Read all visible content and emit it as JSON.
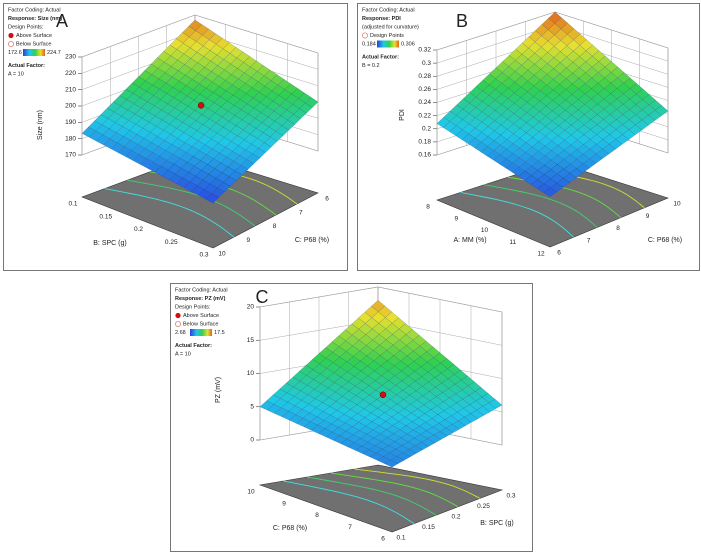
{
  "panels": [
    {
      "letter": "A",
      "legend": {
        "coding": "Factor Coding: Actual",
        "response": "Response: Size (nm)",
        "design_points": "Design Points:",
        "above_surface": "Above Surface",
        "below_surface": "Below Surface",
        "range_min": 172.6,
        "range_max": 224.7,
        "actual_factor": "Actual Factor:",
        "factor_value": "A = 10"
      },
      "z_label": "Size (nm)",
      "z_ticks": [
        170,
        180,
        190,
        200,
        210,
        220,
        230
      ],
      "left_axis_label": "B: SPC (g)",
      "left_ticks": [
        0.1,
        0.15,
        0.2,
        0.25,
        0.3
      ],
      "right_axis_label": "C: P68 (%)",
      "right_ticks": [
        10,
        9,
        8,
        7,
        6
      ]
    },
    {
      "letter": "B",
      "legend": {
        "coding": "Factor Coding: Actual",
        "response": "Response: PDI",
        "note": "(adjusted for curvature)",
        "design_points": "Design Points",
        "range_min": 0.184,
        "range_max": 0.306,
        "actual_factor": "Actual Factor:",
        "factor_value": "B = 0.2"
      },
      "z_label": "PDI",
      "z_ticks": [
        0.16,
        0.18,
        0.2,
        0.22,
        0.24,
        0.26,
        0.28,
        0.3,
        0.32
      ],
      "left_axis_label": "A: MM (%)",
      "left_ticks": [
        8,
        9,
        10,
        11,
        12
      ],
      "right_axis_label": "C: P68 (%)",
      "right_ticks": [
        6,
        7,
        8,
        9,
        10
      ]
    },
    {
      "letter": "C",
      "legend": {
        "coding": "Factor Coding: Actual",
        "response": "Response: PZ (mV)",
        "design_points": "Design Points:",
        "above_surface": "Above Surface",
        "below_surface": "Below Surface",
        "range_min": 2.68,
        "range_max": 17.5,
        "actual_factor": "Actual Factor:",
        "factor_value": "A = 10"
      },
      "z_label": "PZ (mV)",
      "z_ticks": [
        0,
        5,
        10,
        15,
        20
      ],
      "left_axis_label": "C: P68 (%)",
      "left_ticks": [
        10,
        9,
        8,
        7,
        6
      ],
      "right_axis_label": "B: SPC (g)",
      "right_ticks": [
        0.1,
        0.15,
        0.2,
        0.25,
        0.3
      ]
    }
  ]
}
